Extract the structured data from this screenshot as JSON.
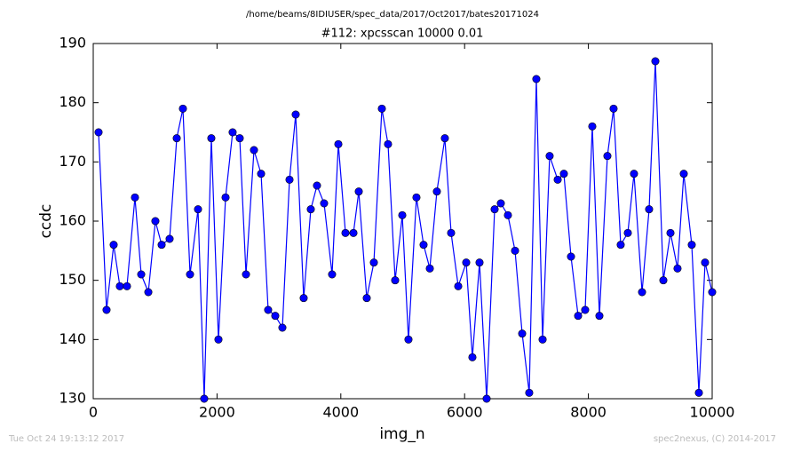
{
  "header": {
    "path": "/home/beams/8IDIUSER/spec_data/2017/Oct2017/bates20171024"
  },
  "footer": {
    "left": "Tue Oct 24 19:13:12 2017",
    "right": "spec2nexus, (C) 2014-2017"
  },
  "chart_data": {
    "type": "line",
    "title": "#112: xpcsscan 10000 0.01",
    "x_label": "img_n",
    "y_label": "ccdc",
    "color": "#0000ff",
    "markers": true,
    "grid": false,
    "x": [
      86,
      215,
      330,
      430,
      545,
      674,
      775,
      890,
      1004,
      1105,
      1234,
      1349,
      1449,
      1564,
      1693,
      1793,
      1908,
      2023,
      2138,
      2252,
      2367,
      2468,
      2597,
      2712,
      2826,
      2941,
      3056,
      3171,
      3271,
      3400,
      3515,
      3615,
      3730,
      3859,
      3960,
      4075,
      4204,
      4290,
      4419,
      4534,
      4663,
      4763,
      4878,
      4993,
      5093,
      5222,
      5337,
      5438,
      5552,
      5681,
      5782,
      5897,
      6026,
      6126,
      6241,
      6356,
      6485,
      6585,
      6700,
      6815,
      6930,
      7044,
      7159,
      7260,
      7374,
      7504,
      7604,
      7719,
      7834,
      7948,
      8063,
      8178,
      8307,
      8407,
      8522,
      8637,
      8737,
      8867,
      8981,
      9082,
      9211,
      9326,
      9440,
      9541,
      9670,
      9785,
      9885,
      10000
    ],
    "values": [
      175,
      145,
      156,
      149,
      149,
      164,
      151,
      148,
      160,
      156,
      157,
      174,
      179,
      151,
      162,
      130,
      174,
      140,
      164,
      175,
      174,
      151,
      172,
      168,
      145,
      144,
      142,
      167,
      178,
      147,
      162,
      166,
      163,
      151,
      173,
      158,
      158,
      165,
      147,
      153,
      179,
      173,
      150,
      161,
      140,
      164,
      156,
      152,
      165,
      174,
      158,
      149,
      153,
      137,
      153,
      130,
      162,
      163,
      161,
      155,
      141,
      131,
      184,
      140,
      171,
      167,
      168,
      154,
      144,
      145,
      176,
      144,
      171,
      179,
      156,
      158,
      168,
      148,
      162,
      187,
      150,
      158,
      152,
      168,
      156,
      131,
      153,
      148
    ],
    "xlim": [
      0,
      10000
    ],
    "ylim": [
      130,
      190
    ],
    "xticks": [
      0,
      2000,
      4000,
      6000,
      8000,
      10000
    ],
    "yticks": [
      130,
      140,
      150,
      160,
      170,
      180,
      190
    ]
  }
}
